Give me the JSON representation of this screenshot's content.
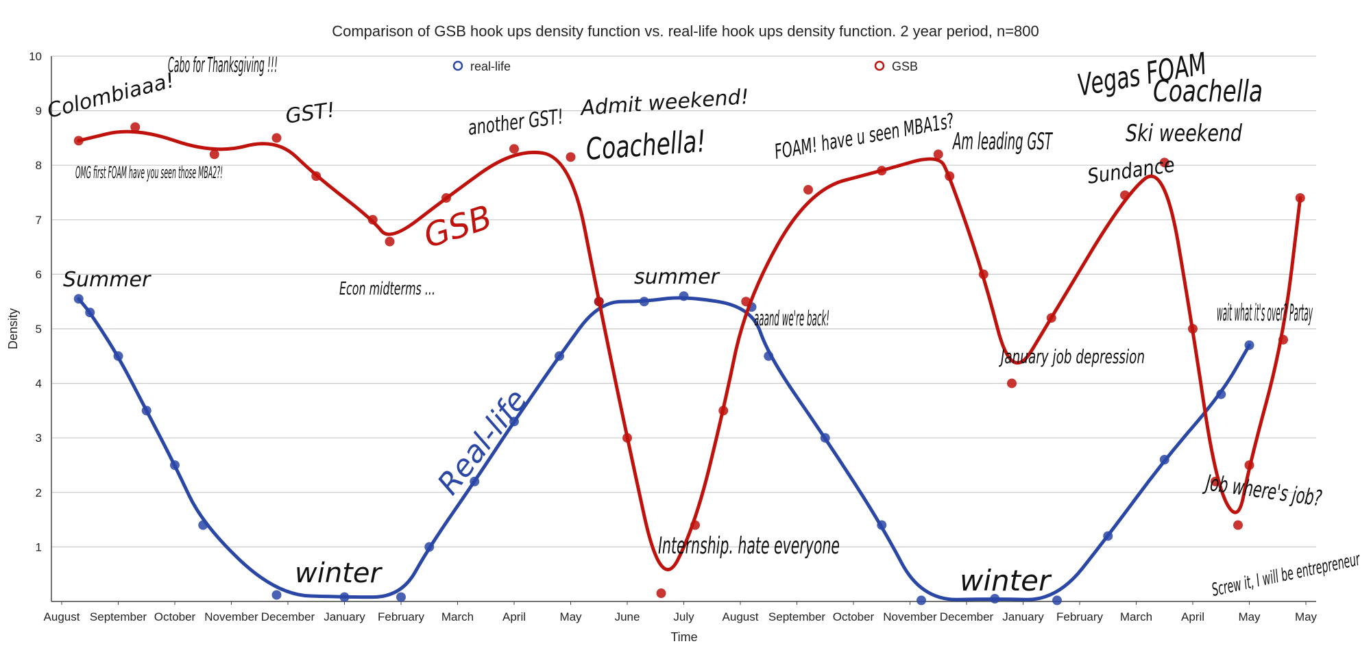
{
  "chart_data": {
    "type": "line",
    "title": "Comparison of GSB hook ups density function vs. real-life hook ups density function. 2 year period, n=800",
    "xlabel": "Time",
    "ylabel": "Density",
    "ylim": [
      0,
      10
    ],
    "yticks": [
      "1",
      "2",
      "3",
      "4",
      "5",
      "6",
      "7",
      "8",
      "9",
      "10"
    ],
    "categories": [
      "August",
      "September",
      "October",
      "November",
      "December",
      "January",
      "February",
      "March",
      "April",
      "May",
      "June",
      "July",
      "August",
      "September",
      "October",
      "November",
      "December",
      "January",
      "February",
      "March",
      "April",
      "May",
      "May"
    ],
    "grid": true,
    "legend_position": "top",
    "colors": {
      "real_life": "#2a47a6",
      "gsb": "#c0120c",
      "grid": "#c8c8c8"
    },
    "series": [
      {
        "name": "real-life",
        "color": "#2a47a6",
        "points": [
          {
            "x": 0.3,
            "y": 5.55
          },
          {
            "x": 0.5,
            "y": 5.3
          },
          {
            "x": 1.0,
            "y": 4.5
          },
          {
            "x": 1.5,
            "y": 3.5
          },
          {
            "x": 2.0,
            "y": 2.5
          },
          {
            "x": 2.5,
            "y": 1.4
          },
          {
            "x": 3.8,
            "y": 0.12
          },
          {
            "x": 5.0,
            "y": 0.08
          },
          {
            "x": 6.0,
            "y": 0.08
          },
          {
            "x": 6.5,
            "y": 1.0
          },
          {
            "x": 7.3,
            "y": 2.2
          },
          {
            "x": 8.0,
            "y": 3.3
          },
          {
            "x": 8.8,
            "y": 4.5
          },
          {
            "x": 9.5,
            "y": 5.5
          },
          {
            "x": 10.3,
            "y": 5.5
          },
          {
            "x": 11.0,
            "y": 5.6
          },
          {
            "x": 12.2,
            "y": 5.4
          },
          {
            "x": 12.5,
            "y": 4.5
          },
          {
            "x": 13.5,
            "y": 3.0
          },
          {
            "x": 14.5,
            "y": 1.4
          },
          {
            "x": 15.2,
            "y": 0.02
          },
          {
            "x": 16.5,
            "y": 0.05
          },
          {
            "x": 17.6,
            "y": 0.02
          },
          {
            "x": 18.5,
            "y": 1.2
          },
          {
            "x": 19.5,
            "y": 2.6
          },
          {
            "x": 20.5,
            "y": 3.8
          },
          {
            "x": 21.0,
            "y": 4.7
          }
        ]
      },
      {
        "name": "GSB",
        "color": "#c0120c",
        "points": [
          {
            "x": 0.3,
            "y": 8.45
          },
          {
            "x": 1.3,
            "y": 8.7
          },
          {
            "x": 2.7,
            "y": 8.2
          },
          {
            "x": 3.8,
            "y": 8.5
          },
          {
            "x": 4.5,
            "y": 7.8
          },
          {
            "x": 5.5,
            "y": 7.0
          },
          {
            "x": 5.8,
            "y": 6.6
          },
          {
            "x": 6.8,
            "y": 7.4
          },
          {
            "x": 8.0,
            "y": 8.3
          },
          {
            "x": 9.0,
            "y": 8.15
          },
          {
            "x": 9.5,
            "y": 5.5
          },
          {
            "x": 10.0,
            "y": 3.0
          },
          {
            "x": 10.6,
            "y": 0.15
          },
          {
            "x": 11.2,
            "y": 1.4
          },
          {
            "x": 11.7,
            "y": 3.5
          },
          {
            "x": 12.1,
            "y": 5.5
          },
          {
            "x": 13.2,
            "y": 7.55
          },
          {
            "x": 14.5,
            "y": 7.9
          },
          {
            "x": 15.5,
            "y": 8.2
          },
          {
            "x": 15.7,
            "y": 7.8
          },
          {
            "x": 16.3,
            "y": 6.0
          },
          {
            "x": 16.8,
            "y": 4.0
          },
          {
            "x": 17.5,
            "y": 5.2
          },
          {
            "x": 18.8,
            "y": 7.45
          },
          {
            "x": 19.5,
            "y": 8.05
          },
          {
            "x": 20.0,
            "y": 5.0
          },
          {
            "x": 20.4,
            "y": 2.2
          },
          {
            "x": 20.8,
            "y": 1.4
          },
          {
            "x": 21.0,
            "y": 2.5
          },
          {
            "x": 21.6,
            "y": 4.8
          },
          {
            "x": 21.9,
            "y": 7.4
          }
        ]
      }
    ],
    "annotations": [
      "Colombiaaa!",
      "Cabo for Thanksgiving !!!",
      "GST!",
      "OMG first FOAM have you seen those MBA2?!",
      "Summer",
      "Econ midterms ...",
      "GSB",
      "another GST!",
      "Admit weekend!",
      "Coachella!",
      "Real-life",
      "summer",
      "winter",
      "Internship. hate everyone",
      "aaand we're back!",
      "FOAM! have u seen MBA1s?",
      "Am leading GST",
      "January job depression",
      "winter",
      "Vegas FOAM",
      "Coachella",
      "Ski weekend",
      "Sundance",
      "wait what it's over? Partay",
      "Job where's job?",
      "Screw it, I will be entrepreneur"
    ]
  }
}
